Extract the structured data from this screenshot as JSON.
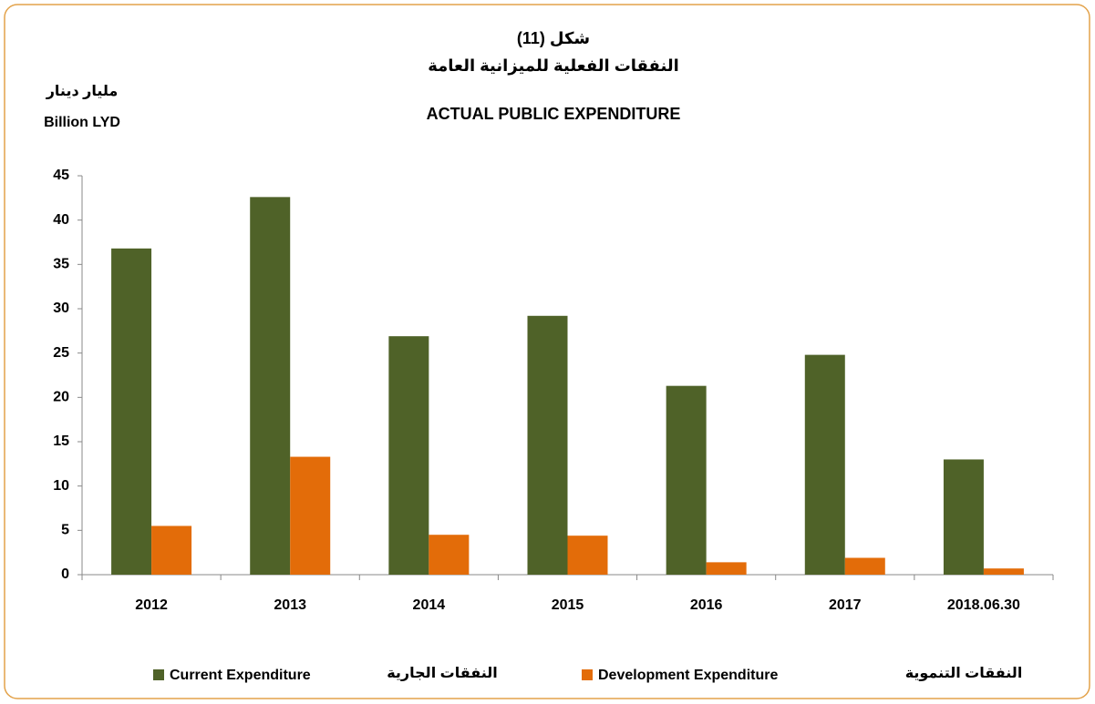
{
  "chart_data": {
    "type": "bar",
    "figure_label": "شكل (11)",
    "title_ar": "النفقات الفعلية للميزانية العامة",
    "title": "ACTUAL PUBLIC EXPENDITURE",
    "y_label_ar": "مليار دينار",
    "y_label": "Billion LYD",
    "categories": [
      "2012",
      "2013",
      "2014",
      "2015",
      "2016",
      "2017",
      "2018.06.30"
    ],
    "series": [
      {
        "name": "Current Expenditure",
        "name_ar": "النفقات الجارية",
        "color": "#4f6228",
        "values": [
          36.8,
          42.6,
          26.9,
          29.2,
          21.3,
          24.8,
          13.0
        ]
      },
      {
        "name": "Development Expenditure",
        "name_ar": "النفقات التنموية",
        "color": "#e36c09",
        "values": [
          5.5,
          13.3,
          4.5,
          4.4,
          1.4,
          1.9,
          0.7
        ]
      }
    ],
    "ylim": [
      0,
      45
    ],
    "yticks": [
      0,
      5,
      10,
      15,
      20,
      25,
      30,
      35,
      40,
      45
    ],
    "grid": false
  }
}
